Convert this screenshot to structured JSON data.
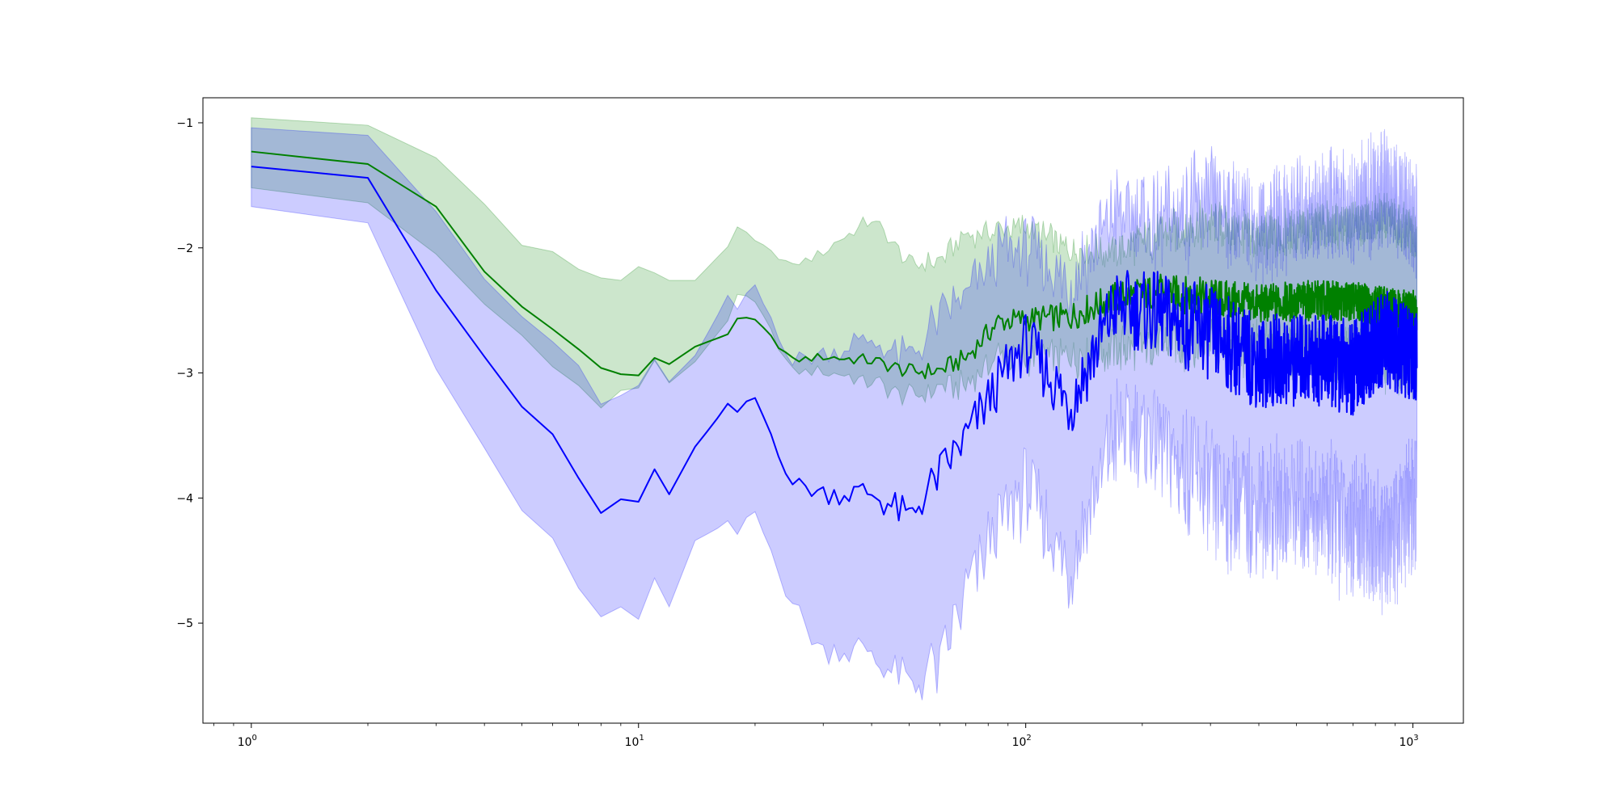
{
  "chart_data": {
    "type": "line",
    "title": "",
    "xlabel": "",
    "ylabel": "",
    "x_scale": "log",
    "xlim": [
      0.75,
      1350
    ],
    "ylim": [
      -5.8,
      -0.8
    ],
    "x_ticks": [
      {
        "value": 1,
        "base": "10",
        "exp": "0"
      },
      {
        "value": 10,
        "base": "10",
        "exp": "1"
      },
      {
        "value": 100,
        "base": "10",
        "exp": "2"
      },
      {
        "value": 1000,
        "base": "10",
        "exp": "3"
      }
    ],
    "y_ticks": [
      {
        "value": -1,
        "label": "−1"
      },
      {
        "value": -2,
        "label": "−2"
      },
      {
        "value": -3,
        "label": "−3"
      },
      {
        "value": -4,
        "label": "−4"
      },
      {
        "value": -5,
        "label": "−5"
      }
    ],
    "grid": false,
    "legend": "none",
    "series": [
      {
        "color": "#008000",
        "band_color": "#008000",
        "band_opacity": 0.2,
        "key_points": [
          {
            "x": 1,
            "mean": -1.23,
            "lower": -1.52,
            "upper": -0.96
          },
          {
            "x": 2,
            "mean": -1.33,
            "lower": -1.64,
            "upper": -1.02
          },
          {
            "x": 3,
            "mean": -1.67,
            "lower": -2.05,
            "upper": -1.28
          },
          {
            "x": 4,
            "mean": -2.19,
            "lower": -2.45,
            "upper": -1.65
          },
          {
            "x": 5,
            "mean": -2.47,
            "lower": -2.7,
            "upper": -1.98
          },
          {
            "x": 6,
            "mean": -2.65,
            "lower": -2.95,
            "upper": -2.03
          },
          {
            "x": 7,
            "mean": -2.81,
            "lower": -3.1,
            "upper": -2.17
          },
          {
            "x": 8,
            "mean": -2.96,
            "lower": -3.28,
            "upper": -2.24
          },
          {
            "x": 9,
            "mean": -3.01,
            "lower": -3.14,
            "upper": -2.26
          },
          {
            "x": 10,
            "mean": -3.02,
            "lower": -3.12,
            "upper": -2.15
          },
          {
            "x": 11,
            "mean": -2.88,
            "lower": -2.9,
            "upper": -2.2
          },
          {
            "x": 12,
            "mean": -2.93,
            "lower": -3.08,
            "upper": -2.26
          },
          {
            "x": 14,
            "mean": -2.79,
            "lower": -2.91,
            "upper": -2.26
          },
          {
            "x": 17,
            "mean": -2.69,
            "lower": -2.58,
            "upper": -1.99
          },
          {
            "x": 18,
            "mean": -2.56,
            "lower": -2.36,
            "upper": -1.83
          },
          {
            "x": 20,
            "mean": -2.58,
            "lower": -2.43,
            "upper": -1.95
          },
          {
            "x": 25,
            "mean": -2.9,
            "lower": -2.98,
            "upper": -2.16
          },
          {
            "x": 30,
            "mean": -2.87,
            "lower": -2.97,
            "upper": -2.04
          },
          {
            "x": 40,
            "mean": -2.9,
            "lower": -3.06,
            "upper": -1.78
          },
          {
            "x": 50,
            "mean": -2.99,
            "lower": -3.16,
            "upper": -2.15
          },
          {
            "x": 60,
            "mean": -2.98,
            "lower": -3.09,
            "upper": -2.13
          },
          {
            "x": 70,
            "mean": -2.88,
            "lower": -3.06,
            "upper": -1.92
          },
          {
            "x": 85,
            "mean": -2.59,
            "lower": -2.82,
            "upper": -1.89
          },
          {
            "x": 100,
            "mean": -2.57,
            "lower": -2.83,
            "upper": -1.86
          },
          {
            "x": 130,
            "mean": -2.55,
            "lower": -2.82,
            "upper": -2.05
          },
          {
            "x": 170,
            "mean": -2.4,
            "lower": -2.77,
            "upper": -2.07
          },
          {
            "x": 220,
            "mean": -2.35,
            "lower": -2.72,
            "upper": -1.94
          },
          {
            "x": 300,
            "mean": -2.4,
            "lower": -2.68,
            "upper": -1.86
          },
          {
            "x": 400,
            "mean": -2.45,
            "lower": -2.75,
            "upper": -1.97
          },
          {
            "x": 550,
            "mean": -2.42,
            "lower": -2.77,
            "upper": -1.88
          },
          {
            "x": 700,
            "mean": -2.43,
            "lower": -2.8,
            "upper": -1.86
          },
          {
            "x": 850,
            "mean": -2.47,
            "lower": -2.84,
            "upper": -1.8
          },
          {
            "x": 1024,
            "mean": -2.5,
            "lower": -2.91,
            "upper": -1.95
          }
        ]
      },
      {
        "color": "#0000ff",
        "band_color": "#0000ff",
        "band_opacity": 0.2,
        "key_points": [
          {
            "x": 1,
            "mean": -1.35,
            "lower": -1.67,
            "upper": -1.04
          },
          {
            "x": 2,
            "mean": -1.44,
            "lower": -1.8,
            "upper": -1.1
          },
          {
            "x": 3,
            "mean": -2.34,
            "lower": -2.97,
            "upper": -1.71
          },
          {
            "x": 4,
            "mean": -2.87,
            "lower": -3.6,
            "upper": -2.25
          },
          {
            "x": 5,
            "mean": -3.27,
            "lower": -4.1,
            "upper": -2.55
          },
          {
            "x": 6,
            "mean": -3.49,
            "lower": -4.32,
            "upper": -2.75
          },
          {
            "x": 7,
            "mean": -3.84,
            "lower": -4.72,
            "upper": -2.94
          },
          {
            "x": 8,
            "mean": -4.12,
            "lower": -4.95,
            "upper": -3.25
          },
          {
            "x": 9,
            "mean": -4.01,
            "lower": -4.87,
            "upper": -3.18
          },
          {
            "x": 10,
            "mean": -4.03,
            "lower": -4.97,
            "upper": -3.1
          },
          {
            "x": 11,
            "mean": -3.77,
            "lower": -4.64,
            "upper": -2.89
          },
          {
            "x": 12,
            "mean": -3.97,
            "lower": -4.87,
            "upper": -3.07
          },
          {
            "x": 14,
            "mean": -3.59,
            "lower": -4.34,
            "upper": -2.86
          },
          {
            "x": 17,
            "mean": -3.26,
            "lower": -4.2,
            "upper": -2.4
          },
          {
            "x": 18,
            "mean": -3.31,
            "lower": -4.27,
            "upper": -2.5
          },
          {
            "x": 20,
            "mean": -3.2,
            "lower": -4.09,
            "upper": -2.31
          },
          {
            "x": 25,
            "mean": -3.88,
            "lower": -4.81,
            "upper": -2.94
          },
          {
            "x": 30,
            "mean": -3.96,
            "lower": -5.19,
            "upper": -2.87
          },
          {
            "x": 40,
            "mean": -3.96,
            "lower": -5.17,
            "upper": -2.76
          },
          {
            "x": 50,
            "mean": -4.16,
            "lower": -5.45,
            "upper": -2.94
          },
          {
            "x": 60,
            "mean": -3.8,
            "lower": -5.28,
            "upper": -2.61
          },
          {
            "x": 70,
            "mean": -3.52,
            "lower": -4.7,
            "upper": -2.47
          },
          {
            "x": 85,
            "mean": -3.08,
            "lower": -4.12,
            "upper": -2.13
          },
          {
            "x": 100,
            "mean": -2.75,
            "lower": -3.84,
            "upper": -2.05
          },
          {
            "x": 130,
            "mean": -3.26,
            "lower": -4.46,
            "upper": -2.36
          },
          {
            "x": 170,
            "mean": -2.47,
            "lower": -3.36,
            "upper": -1.8
          },
          {
            "x": 220,
            "mean": -2.53,
            "lower": -3.4,
            "upper": -1.92
          },
          {
            "x": 300,
            "mean": -2.68,
            "lower": -3.83,
            "upper": -1.74
          },
          {
            "x": 400,
            "mean": -2.92,
            "lower": -3.95,
            "upper": -1.96
          },
          {
            "x": 550,
            "mean": -2.88,
            "lower": -3.92,
            "upper": -1.81
          },
          {
            "x": 700,
            "mean": -2.96,
            "lower": -4.08,
            "upper": -1.79
          },
          {
            "x": 850,
            "mean": -2.72,
            "lower": -4.21,
            "upper": -1.63
          },
          {
            "x": 1024,
            "mean": -2.9,
            "lower": -3.9,
            "upper": -1.94
          }
        ]
      }
    ]
  }
}
